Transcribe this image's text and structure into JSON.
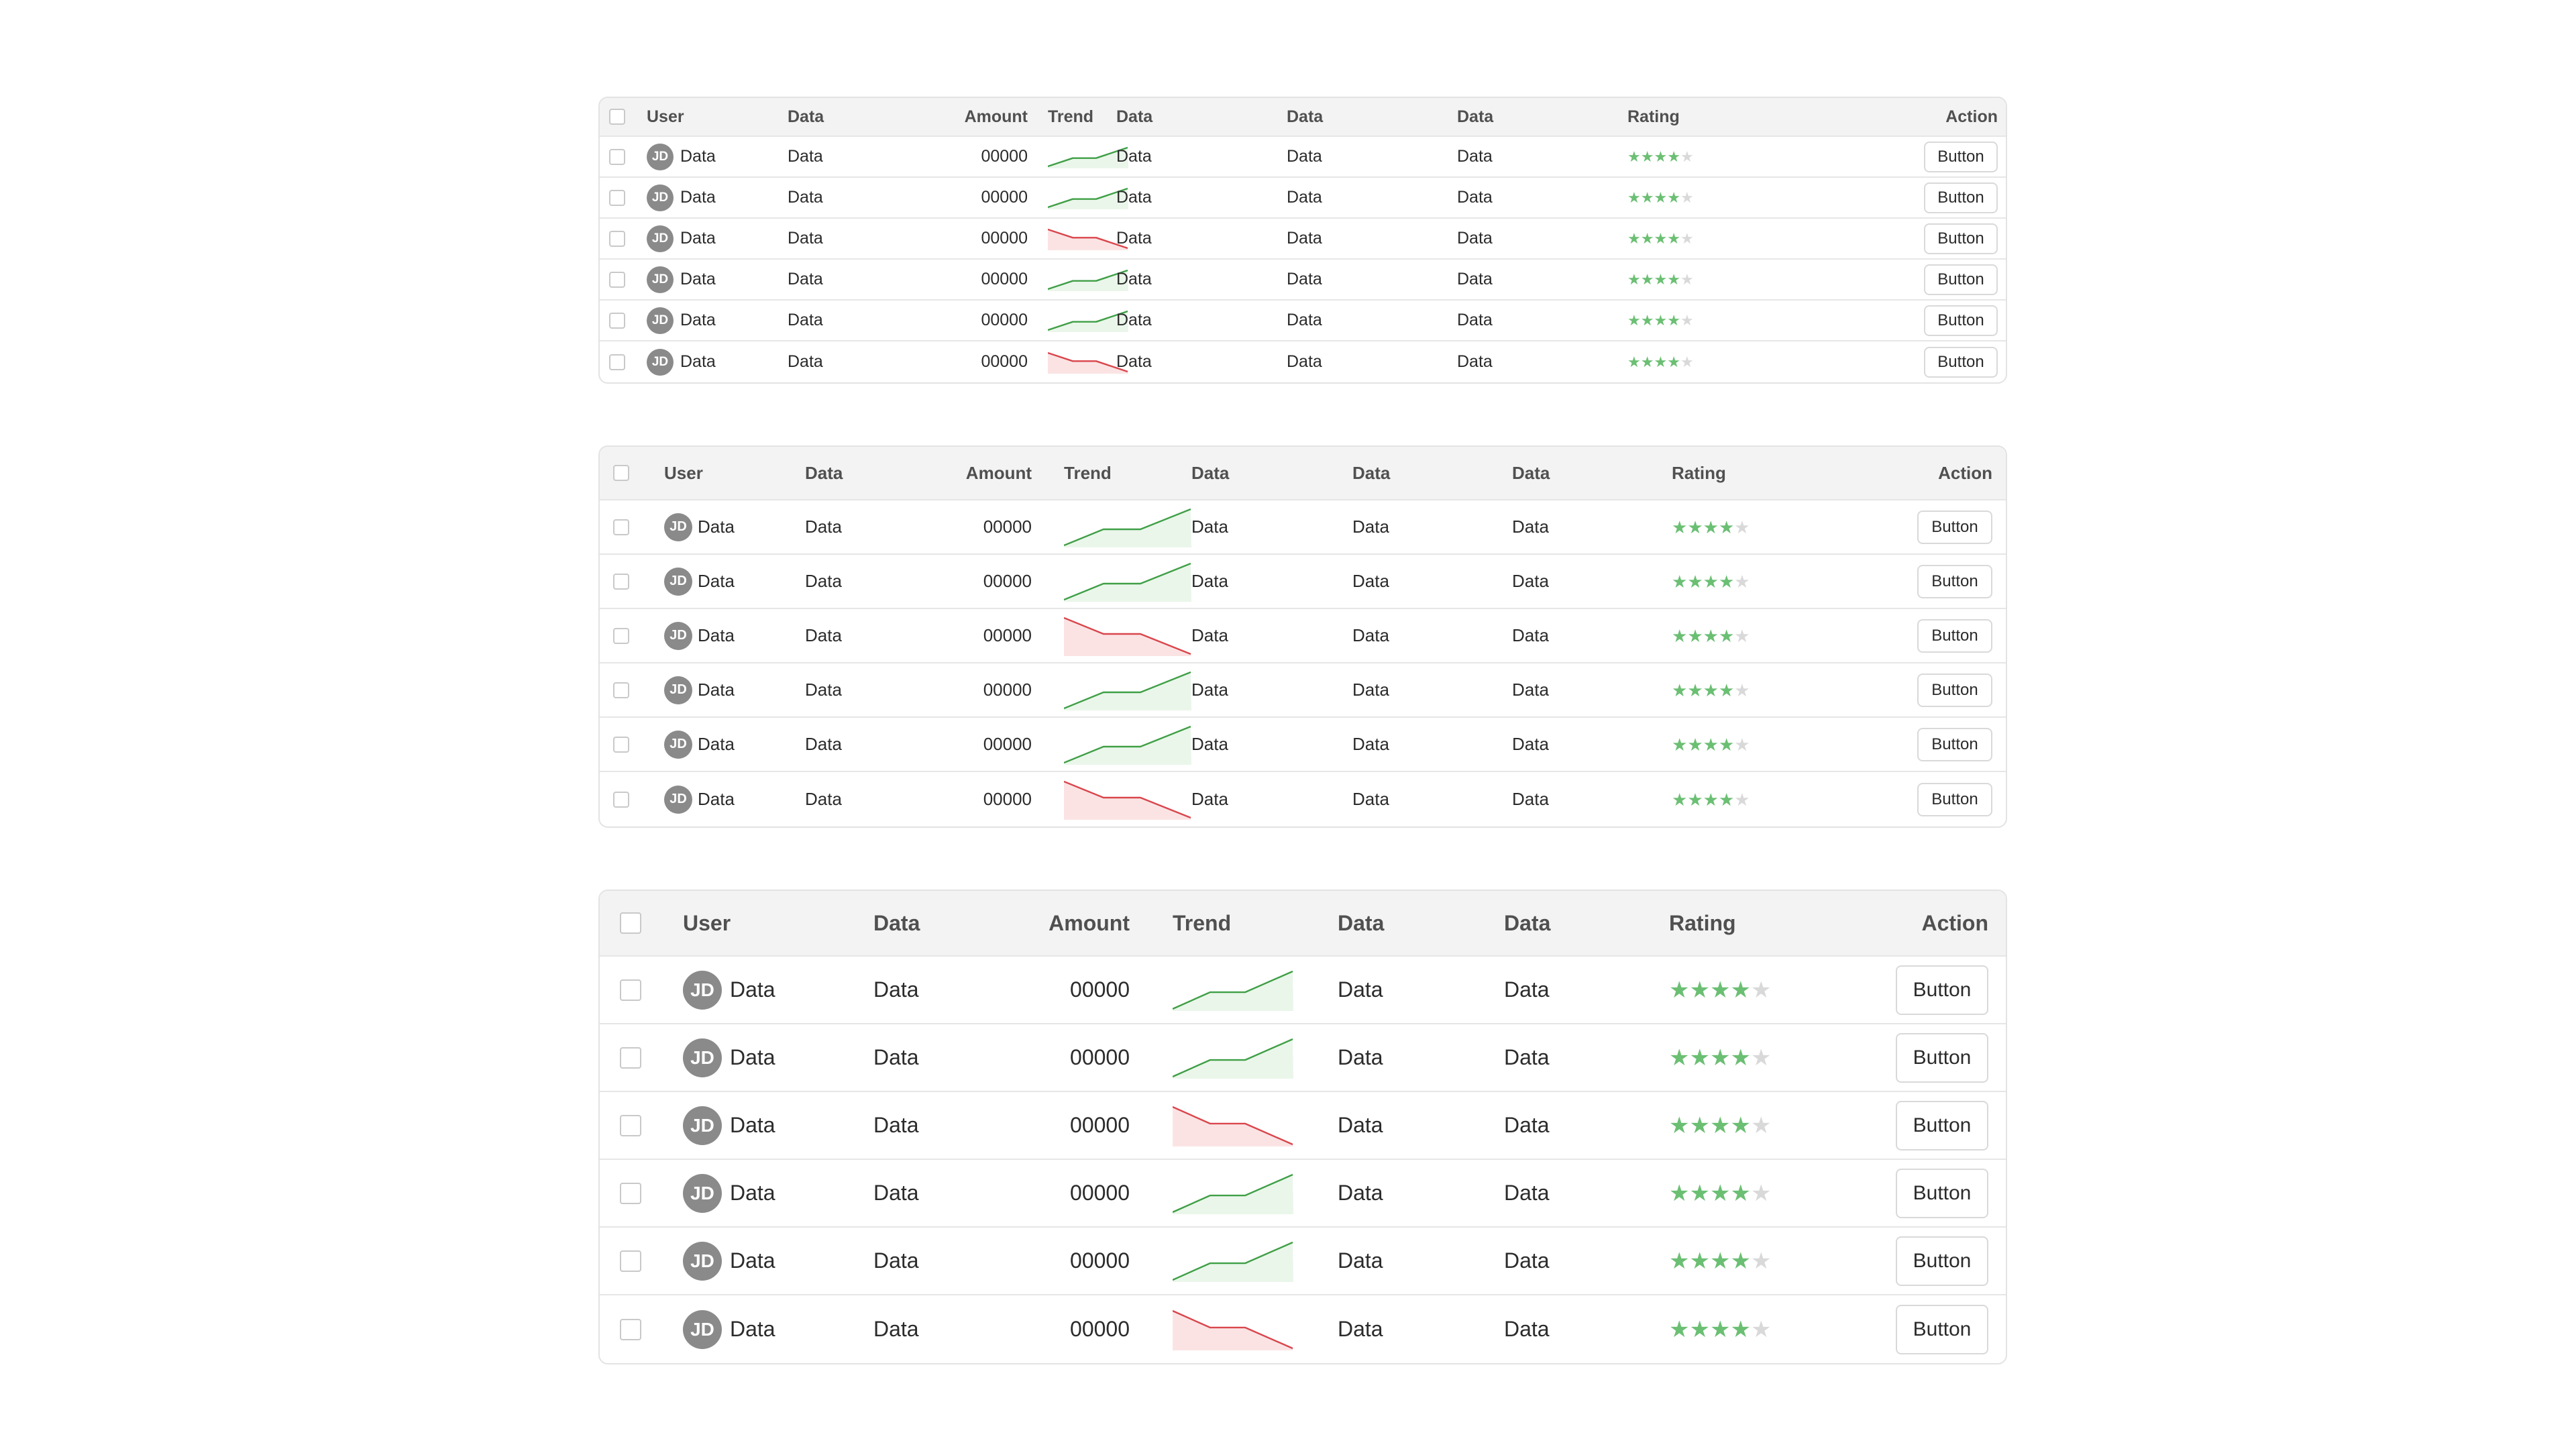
{
  "colors": {
    "up_line": "#3f9f46",
    "up_fill": "#eaf6ea",
    "down_line": "#d9464c",
    "down_fill": "#fbe3e4",
    "star_on": "#6bbf73",
    "star_off": "#d9d9d9",
    "avatar_bg": "#8a8a8a",
    "header_bg": "#f3f3f3"
  },
  "icons": {
    "star": "★"
  },
  "tables": [
    {
      "columns": {
        "user": "User",
        "data1": "Data",
        "amount": "Amount",
        "trend": "Trend",
        "d2": "Data",
        "d3": "Data",
        "d4": "Data",
        "rating": "Rating",
        "action": "Action"
      },
      "rows": [
        {
          "avatar": "JD",
          "user": "Data",
          "data1": "Data",
          "amount": "00000",
          "trend": "up",
          "d2": "Data",
          "d3": "Data",
          "d4": "Data",
          "rating": 4,
          "button": "Button"
        },
        {
          "avatar": "JD",
          "user": "Data",
          "data1": "Data",
          "amount": "00000",
          "trend": "up",
          "d2": "Data",
          "d3": "Data",
          "d4": "Data",
          "rating": 4,
          "button": "Button"
        },
        {
          "avatar": "JD",
          "user": "Data",
          "data1": "Data",
          "amount": "00000",
          "trend": "down",
          "d2": "Data",
          "d3": "Data",
          "d4": "Data",
          "rating": 4,
          "button": "Button"
        },
        {
          "avatar": "JD",
          "user": "Data",
          "data1": "Data",
          "amount": "00000",
          "trend": "up",
          "d2": "Data",
          "d3": "Data",
          "d4": "Data",
          "rating": 4,
          "button": "Button"
        },
        {
          "avatar": "JD",
          "user": "Data",
          "data1": "Data",
          "amount": "00000",
          "trend": "up",
          "d2": "Data",
          "d3": "Data",
          "d4": "Data",
          "rating": 4,
          "button": "Button"
        },
        {
          "avatar": "JD",
          "user": "Data",
          "data1": "Data",
          "amount": "00000",
          "trend": "down",
          "d2": "Data",
          "d3": "Data",
          "d4": "Data",
          "rating": 4,
          "button": "Button"
        }
      ]
    },
    {
      "columns": {
        "user": "User",
        "data1": "Data",
        "amount": "Amount",
        "trend": "Trend",
        "d2": "Data",
        "d3": "Data",
        "d4": "Data",
        "rating": "Rating",
        "action": "Action"
      },
      "rows": [
        {
          "avatar": "JD",
          "user": "Data",
          "data1": "Data",
          "amount": "00000",
          "trend": "up",
          "d2": "Data",
          "d3": "Data",
          "d4": "Data",
          "rating": 4,
          "button": "Button"
        },
        {
          "avatar": "JD",
          "user": "Data",
          "data1": "Data",
          "amount": "00000",
          "trend": "up",
          "d2": "Data",
          "d3": "Data",
          "d4": "Data",
          "rating": 4,
          "button": "Button"
        },
        {
          "avatar": "JD",
          "user": "Data",
          "data1": "Data",
          "amount": "00000",
          "trend": "down",
          "d2": "Data",
          "d3": "Data",
          "d4": "Data",
          "rating": 4,
          "button": "Button"
        },
        {
          "avatar": "JD",
          "user": "Data",
          "data1": "Data",
          "amount": "00000",
          "trend": "up",
          "d2": "Data",
          "d3": "Data",
          "d4": "Data",
          "rating": 4,
          "button": "Button"
        },
        {
          "avatar": "JD",
          "user": "Data",
          "data1": "Data",
          "amount": "00000",
          "trend": "up",
          "d2": "Data",
          "d3": "Data",
          "d4": "Data",
          "rating": 4,
          "button": "Button"
        },
        {
          "avatar": "JD",
          "user": "Data",
          "data1": "Data",
          "amount": "00000",
          "trend": "down",
          "d2": "Data",
          "d3": "Data",
          "d4": "Data",
          "rating": 4,
          "button": "Button"
        }
      ]
    },
    {
      "columns": {
        "user": "User",
        "data1": "Data",
        "amount": "Amount",
        "trend": "Trend",
        "d2": "Data",
        "d3": "Data",
        "rating": "Rating",
        "action": "Action"
      },
      "rows": [
        {
          "avatar": "JD",
          "user": "Data",
          "data1": "Data",
          "amount": "00000",
          "trend": "up",
          "d2": "Data",
          "d3": "Data",
          "rating": 4,
          "button": "Button"
        },
        {
          "avatar": "JD",
          "user": "Data",
          "data1": "Data",
          "amount": "00000",
          "trend": "up",
          "d2": "Data",
          "d3": "Data",
          "rating": 4,
          "button": "Button"
        },
        {
          "avatar": "JD",
          "user": "Data",
          "data1": "Data",
          "amount": "00000",
          "trend": "down",
          "d2": "Data",
          "d3": "Data",
          "rating": 4,
          "button": "Button"
        },
        {
          "avatar": "JD",
          "user": "Data",
          "data1": "Data",
          "amount": "00000",
          "trend": "up",
          "d2": "Data",
          "d3": "Data",
          "rating": 4,
          "button": "Button"
        },
        {
          "avatar": "JD",
          "user": "Data",
          "data1": "Data",
          "amount": "00000",
          "trend": "up",
          "d2": "Data",
          "d3": "Data",
          "rating": 4,
          "button": "Button"
        },
        {
          "avatar": "JD",
          "user": "Data",
          "data1": "Data",
          "amount": "00000",
          "trend": "down",
          "d2": "Data",
          "d3": "Data",
          "rating": 4,
          "button": "Button"
        }
      ]
    }
  ]
}
